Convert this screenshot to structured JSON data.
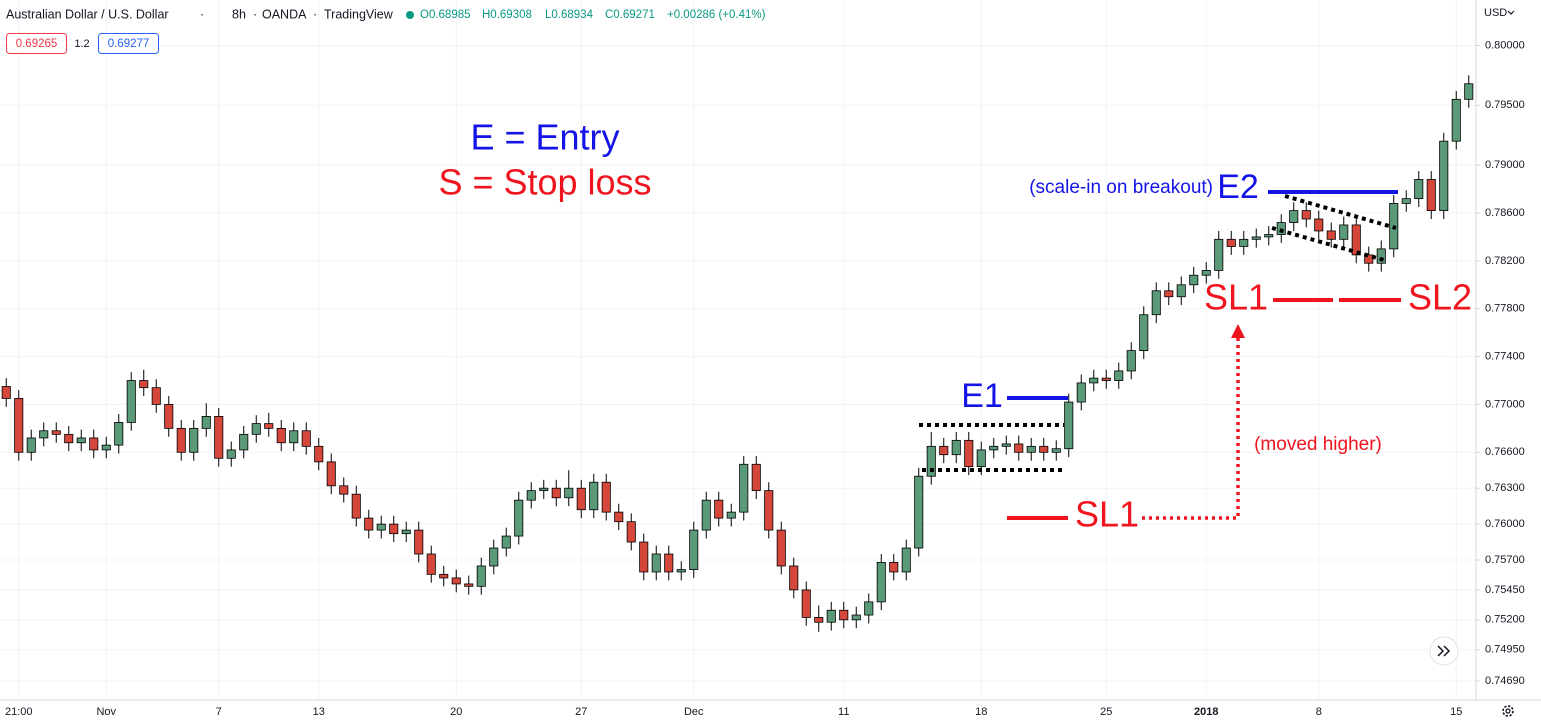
{
  "header": {
    "symbol": "Australian Dollar / U.S. Dollar",
    "interval": "8h",
    "exchange": "OANDA",
    "source": "TradingView",
    "open": "O0.68985",
    "high": "H0.69308",
    "low": "L0.68934",
    "close": "C0.69271",
    "change": "+0.00286 (+0.41%)",
    "bid": "0.69265",
    "spread": "1.2",
    "ask": "0.69277",
    "currency": "USD"
  },
  "annotations": {
    "legend_entry": "E = Entry",
    "legend_stop": "S = Stop loss",
    "scale_in": "(scale-in on breakout)",
    "e2": "E2",
    "e1": "E1",
    "sl1_upper": "SL1",
    "sl2": "SL2",
    "sl1_lower": "SL1",
    "moved": "(moved higher)"
  },
  "chart_data": {
    "type": "candlestick",
    "up_color": "#5b9a78",
    "down_color": "#d6473b",
    "grid": true,
    "ylim": [
      0.7453,
      0.8038
    ],
    "yticks": [
      {
        "value": 0.8,
        "label": "0.80000"
      },
      {
        "value": 0.795,
        "label": "0.79500"
      },
      {
        "value": 0.79,
        "label": "0.79000"
      },
      {
        "value": 0.786,
        "label": "0.78600"
      },
      {
        "value": 0.782,
        "label": "0.78200"
      },
      {
        "value": 0.778,
        "label": "0.77800"
      },
      {
        "value": 0.774,
        "label": "0.77400"
      },
      {
        "value": 0.77,
        "label": "0.77000"
      },
      {
        "value": 0.766,
        "label": "0.76600"
      },
      {
        "value": 0.763,
        "label": "0.76300"
      },
      {
        "value": 0.76,
        "label": "0.76000"
      },
      {
        "value": 0.757,
        "label": "0.75700"
      },
      {
        "value": 0.7545,
        "label": "0.75450"
      },
      {
        "value": 0.752,
        "label": "0.75200"
      },
      {
        "value": 0.7495,
        "label": "0.74950"
      },
      {
        "value": 0.7469,
        "label": "0.74690"
      }
    ],
    "categories": [
      null,
      "21:00",
      null,
      null,
      null,
      null,
      null,
      null,
      "Nov",
      null,
      null,
      null,
      null,
      null,
      null,
      null,
      null,
      "7",
      null,
      null,
      null,
      null,
      null,
      null,
      null,
      "13",
      null,
      null,
      null,
      null,
      null,
      null,
      null,
      null,
      null,
      null,
      "20",
      null,
      null,
      null,
      null,
      null,
      null,
      null,
      null,
      null,
      "27",
      null,
      null,
      null,
      null,
      null,
      null,
      null,
      null,
      "Dec",
      null,
      null,
      null,
      null,
      null,
      null,
      null,
      null,
      null,
      null,
      null,
      "11",
      null,
      null,
      null,
      null,
      null,
      null,
      null,
      null,
      null,
      null,
      "18",
      null,
      null,
      null,
      null,
      null,
      null,
      null,
      null,
      null,
      "25",
      null,
      null,
      null,
      null,
      null,
      null,
      null,
      "2018",
      null,
      null,
      null,
      null,
      null,
      null,
      null,
      null,
      "8",
      null,
      null,
      null,
      null,
      null,
      null,
      null,
      null,
      null,
      null,
      "15",
      null
    ],
    "open": [
      0.7715,
      0.7705,
      0.766,
      0.7672,
      0.7678,
      0.7675,
      0.7668,
      0.7672,
      0.7662,
      0.7666,
      0.7685,
      0.772,
      0.7714,
      0.77,
      0.768,
      0.766,
      0.768,
      0.769,
      0.7655,
      0.7662,
      0.7675,
      0.7684,
      0.768,
      0.7668,
      0.7678,
      0.7665,
      0.7652,
      0.7632,
      0.7625,
      0.7605,
      0.7595,
      0.76,
      0.7592,
      0.7595,
      0.7575,
      0.7558,
      0.7555,
      0.755,
      0.7548,
      0.7565,
      0.758,
      0.759,
      0.762,
      0.7628,
      0.763,
      0.7622,
      0.763,
      0.7612,
      0.7635,
      0.761,
      0.7602,
      0.7585,
      0.756,
      0.7575,
      0.756,
      0.7562,
      0.7595,
      0.762,
      0.7605,
      0.761,
      0.765,
      0.7628,
      0.7595,
      0.7565,
      0.7545,
      0.7522,
      0.7518,
      0.7528,
      0.752,
      0.7524,
      0.7535,
      0.7568,
      0.756,
      0.758,
      0.764,
      0.7665,
      0.7658,
      0.767,
      0.7648,
      0.7662,
      0.7665,
      0.7667,
      0.766,
      0.7665,
      0.766,
      0.7663,
      0.7702,
      0.7718,
      0.7722,
      0.772,
      0.7728,
      0.7745,
      0.7775,
      0.7795,
      0.779,
      0.78,
      0.7808,
      0.7812,
      0.7838,
      0.7832,
      0.7838,
      0.784,
      0.7842,
      0.7852,
      0.7862,
      0.7855,
      0.7845,
      0.7838,
      0.785,
      0.7825,
      0.7818,
      0.783,
      0.7868,
      0.7872,
      0.7888,
      0.7862,
      0.792,
      0.7955
    ],
    "high": [
      0.7722,
      0.7712,
      0.7679,
      0.7685,
      0.7685,
      0.7682,
      0.7679,
      0.7679,
      0.7673,
      0.7692,
      0.7727,
      0.7729,
      0.7721,
      0.7707,
      0.7687,
      0.7687,
      0.7701,
      0.7697,
      0.7669,
      0.7682,
      0.7691,
      0.7693,
      0.7687,
      0.7685,
      0.7685,
      0.7672,
      0.7659,
      0.7639,
      0.7632,
      0.7612,
      0.7607,
      0.7607,
      0.7602,
      0.7602,
      0.7582,
      0.7565,
      0.7562,
      0.7557,
      0.7572,
      0.7587,
      0.7597,
      0.7627,
      0.7635,
      0.7637,
      0.7637,
      0.7645,
      0.7637,
      0.7642,
      0.7642,
      0.7617,
      0.7609,
      0.7592,
      0.7582,
      0.7582,
      0.7569,
      0.7602,
      0.7627,
      0.7627,
      0.7617,
      0.7657,
      0.7657,
      0.7635,
      0.7602,
      0.7572,
      0.7552,
      0.7532,
      0.7535,
      0.7535,
      0.7531,
      0.7542,
      0.7575,
      0.7575,
      0.7587,
      0.7647,
      0.7677,
      0.7672,
      0.7677,
      0.7677,
      0.7669,
      0.7672,
      0.7674,
      0.7674,
      0.7672,
      0.7672,
      0.767,
      0.7709,
      0.7725,
      0.7729,
      0.7729,
      0.7735,
      0.7752,
      0.7782,
      0.7802,
      0.7802,
      0.7807,
      0.7815,
      0.7819,
      0.7845,
      0.7845,
      0.7845,
      0.7847,
      0.7849,
      0.7859,
      0.7869,
      0.7869,
      0.7862,
      0.7852,
      0.7857,
      0.7857,
      0.7832,
      0.7837,
      0.7875,
      0.7879,
      0.7895,
      0.7895,
      0.7927,
      0.7962,
      0.7975
    ],
    "low": [
      0.7698,
      0.7653,
      0.7653,
      0.7665,
      0.7668,
      0.7661,
      0.7661,
      0.7655,
      0.7655,
      0.7659,
      0.7678,
      0.7707,
      0.7693,
      0.7673,
      0.7653,
      0.7653,
      0.7673,
      0.7648,
      0.7648,
      0.7655,
      0.7668,
      0.7673,
      0.7661,
      0.7661,
      0.7658,
      0.7645,
      0.7625,
      0.7618,
      0.7598,
      0.7588,
      0.7588,
      0.7585,
      0.7585,
      0.7568,
      0.7551,
      0.7548,
      0.7543,
      0.7541,
      0.7541,
      0.7558,
      0.7573,
      0.7583,
      0.7613,
      0.7621,
      0.7615,
      0.7615,
      0.7605,
      0.7605,
      0.7603,
      0.7595,
      0.7578,
      0.7553,
      0.7553,
      0.7553,
      0.7553,
      0.7555,
      0.7588,
      0.7598,
      0.7598,
      0.7603,
      0.7621,
      0.7588,
      0.7558,
      0.7538,
      0.7515,
      0.751,
      0.7511,
      0.7513,
      0.7513,
      0.7517,
      0.7528,
      0.7553,
      0.7553,
      0.7573,
      0.7633,
      0.7651,
      0.7651,
      0.7641,
      0.7641,
      0.7655,
      0.7658,
      0.7653,
      0.7653,
      0.7653,
      0.7653,
      0.7656,
      0.7695,
      0.7711,
      0.7713,
      0.7713,
      0.7721,
      0.7738,
      0.7768,
      0.7783,
      0.7783,
      0.7793,
      0.7801,
      0.7805,
      0.7825,
      0.7825,
      0.7831,
      0.7833,
      0.7835,
      0.7845,
      0.7848,
      0.7838,
      0.7831,
      0.7831,
      0.7818,
      0.7811,
      0.7811,
      0.7823,
      0.7861,
      0.7865,
      0.7855,
      0.7855,
      0.7913,
      0.7948
    ],
    "close": [
      0.7705,
      0.766,
      0.7672,
      0.7678,
      0.7675,
      0.7668,
      0.7672,
      0.7662,
      0.7666,
      0.7685,
      0.772,
      0.7714,
      0.77,
      0.768,
      0.766,
      0.768,
      0.769,
      0.7655,
      0.7662,
      0.7675,
      0.7684,
      0.768,
      0.7668,
      0.7678,
      0.7665,
      0.7652,
      0.7632,
      0.7625,
      0.7605,
      0.7595,
      0.76,
      0.7592,
      0.7595,
      0.7575,
      0.7558,
      0.7555,
      0.755,
      0.7548,
      0.7565,
      0.758,
      0.759,
      0.762,
      0.7628,
      0.763,
      0.7622,
      0.763,
      0.7612,
      0.7635,
      0.761,
      0.7602,
      0.7585,
      0.756,
      0.7575,
      0.756,
      0.7562,
      0.7595,
      0.762,
      0.7605,
      0.761,
      0.765,
      0.7628,
      0.7595,
      0.7565,
      0.7545,
      0.7522,
      0.7518,
      0.7528,
      0.752,
      0.7524,
      0.7535,
      0.7568,
      0.756,
      0.758,
      0.764,
      0.7665,
      0.7658,
      0.767,
      0.7648,
      0.7662,
      0.7665,
      0.7667,
      0.766,
      0.7665,
      0.766,
      0.7663,
      0.7702,
      0.7718,
      0.7722,
      0.772,
      0.7728,
      0.7745,
      0.7775,
      0.7795,
      0.779,
      0.78,
      0.7808,
      0.7812,
      0.7838,
      0.7832,
      0.7838,
      0.784,
      0.7842,
      0.7852,
      0.7862,
      0.7855,
      0.7845,
      0.7838,
      0.785,
      0.7825,
      0.7818,
      0.783,
      0.7868,
      0.7872,
      0.7888,
      0.7862,
      0.792,
      0.7955,
      0.7968
    ]
  }
}
